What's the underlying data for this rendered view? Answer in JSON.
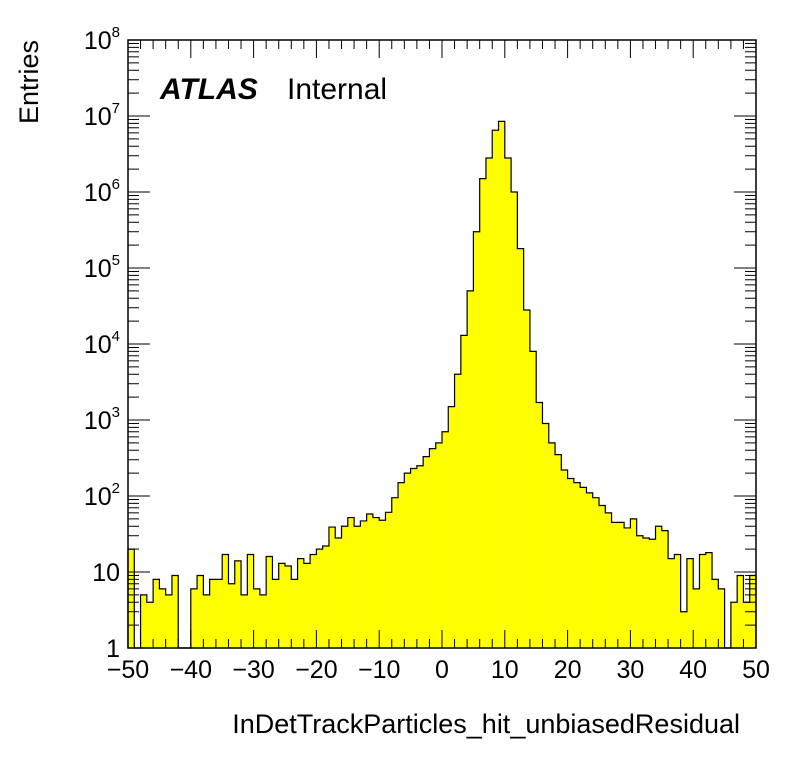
{
  "chart_data": {
    "type": "bar",
    "title": "",
    "xlabel": "InDetTrackParticles_hit_unbiasedResidual",
    "ylabel": "Entries",
    "xlim": [
      -50,
      50
    ],
    "ylim": [
      1,
      100000000
    ],
    "y_scale": "log",
    "grid": false,
    "fill_color": "#ffff00",
    "line_color": "#000000",
    "label": {
      "experiment": "ATLAS",
      "status": "Internal"
    },
    "x_ticks": [
      -50,
      -40,
      -30,
      -20,
      -10,
      0,
      10,
      20,
      30,
      40,
      50
    ],
    "x_tick_labels": [
      "−50",
      "−40",
      "−30",
      "−20",
      "−10",
      "0",
      "10",
      "20",
      "30",
      "40",
      "50"
    ],
    "y_ticks": [
      {
        "value": 1,
        "base": "1",
        "exp": ""
      },
      {
        "value": 10,
        "base": "10",
        "exp": ""
      },
      {
        "value": 100,
        "base": "10",
        "exp": "2"
      },
      {
        "value": 1000,
        "base": "10",
        "exp": "3"
      },
      {
        "value": 10000,
        "base": "10",
        "exp": "4"
      },
      {
        "value": 100000,
        "base": "10",
        "exp": "5"
      },
      {
        "value": 1000000,
        "base": "10",
        "exp": "6"
      },
      {
        "value": 10000000,
        "base": "10",
        "exp": "7"
      },
      {
        "value": 100000000,
        "base": "10",
        "exp": "8"
      }
    ],
    "bin_width": 1,
    "bin_edges_start": -50,
    "values": [
      20,
      1,
      5,
      4,
      8,
      6,
      5,
      9,
      1,
      1,
      6,
      9,
      5,
      8,
      8,
      17,
      7,
      14,
      5,
      17,
      6,
      5,
      16,
      8,
      13,
      12,
      8,
      15,
      13,
      17,
      20,
      22,
      39,
      28,
      40,
      52,
      40,
      47,
      58,
      52,
      48,
      61,
      95,
      150,
      200,
      230,
      250,
      330,
      420,
      500,
      700,
      1500,
      4000,
      13000,
      50000,
      300000,
      1500000,
      2800000,
      6500000,
      8500000,
      2800000,
      1000000,
      180000,
      28000,
      8000,
      1700,
      900,
      500,
      350,
      220,
      170,
      150,
      130,
      110,
      95,
      75,
      60,
      45,
      45,
      38,
      50,
      30,
      28,
      27,
      40,
      35,
      15,
      17,
      3,
      15,
      6,
      17,
      18,
      8,
      6,
      1,
      4,
      9,
      4,
      9
    ]
  }
}
